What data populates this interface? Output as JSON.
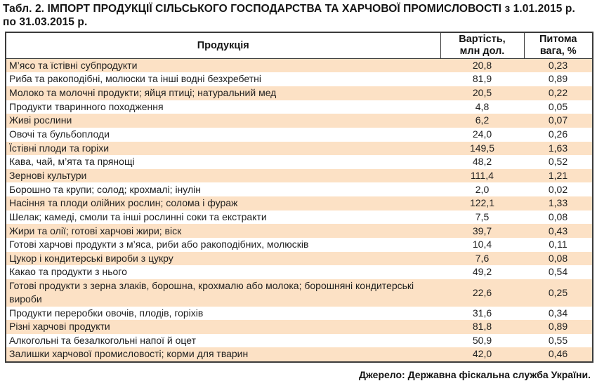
{
  "title_lines": [
    "Табл. 2. ІМПОРТ ПРОДУКЦІЇ СІЛЬСЬКОГО ГОСПОДАРСТВА ТА ХАРЧОВОЇ ПРОМИСЛОВОСТІ з 1.01.2015 р.",
    "по 31.03.2015 р."
  ],
  "table": {
    "columns": {
      "product": "Продукція",
      "value_line1": "Вартість,",
      "value_line2": "млн дол.",
      "share_line1": "Питома",
      "share_line2": "вага, %"
    },
    "rows": [
      {
        "product": "М’ясо та їстівні субпродукти",
        "value": "20,8",
        "share": "0,23"
      },
      {
        "product": "Риба та ракоподібні, молюски та інші водні безхребетні",
        "value": "81,9",
        "share": "0,89"
      },
      {
        "product": "Молоко та молочні продукти; яйця птиці; натуральний мед",
        "value": "20,5",
        "share": "0,22"
      },
      {
        "product": "Продукти тваринного походження",
        "value": "4,8",
        "share": "0,05"
      },
      {
        "product": "Живі рослини",
        "value": "6,2",
        "share": "0,07"
      },
      {
        "product": "Овочі та бульбоплоди",
        "value": "24,0",
        "share": "0,26"
      },
      {
        "product": "Їстівні плоди та горіхи",
        "value": "149,5",
        "share": "1,63"
      },
      {
        "product": "Кава, чай, м’ята та прянощі",
        "value": "48,2",
        "share": "0,52"
      },
      {
        "product": "Зернові культури",
        "value": "111,4",
        "share": "1,21"
      },
      {
        "product": "Борошно та крупи; солод; крохмалі; інулін",
        "value": "2,0",
        "share": "0,02"
      },
      {
        "product": "Насіння та плоди олійних рослин; солома і фураж",
        "value": "122,1",
        "share": "1,33"
      },
      {
        "product": "Шелак; камеді, смоли та інші рослинні соки та екстракти",
        "value": "7,5",
        "share": "0,08"
      },
      {
        "product": "Жири та олії; готові харчові жири; віск",
        "value": "39,7",
        "share": "0,43"
      },
      {
        "product": "Готові харчові продукти з м’яса, риби або ракоподібних, молюсків",
        "value": "10,4",
        "share": "0,11"
      },
      {
        "product": "Цукор і кондитерські вироби з цукру",
        "value": "7,6",
        "share": "0,08"
      },
      {
        "product": "Какао та продукти з нього",
        "value": "49,2",
        "share": "0,54"
      },
      {
        "product": "Готові продукти з зерна злаків, борошна, крохмалю або молока; борошняні кондитерські вироби",
        "value": "22,6",
        "share": "0,25"
      },
      {
        "product": "Продукти переробки овочів, плодів, горіхів",
        "value": "31,6",
        "share": "0,34"
      },
      {
        "product": "Різні харчові продукти",
        "value": "81,8",
        "share": "0,89"
      },
      {
        "product": "Алкогольні та безалкогольні напої й оцет",
        "value": "50,9",
        "share": "0,55"
      },
      {
        "product": "Залишки харчової промисловості; корми для тварин",
        "value": "42,0",
        "share": "0,46"
      }
    ]
  },
  "footer": "Джерело: Державна фіскальна служба України.",
  "colors": {
    "row_shaded": "#FCE1C5",
    "border": "#3B3B3B",
    "text": "#1F1F1F"
  }
}
